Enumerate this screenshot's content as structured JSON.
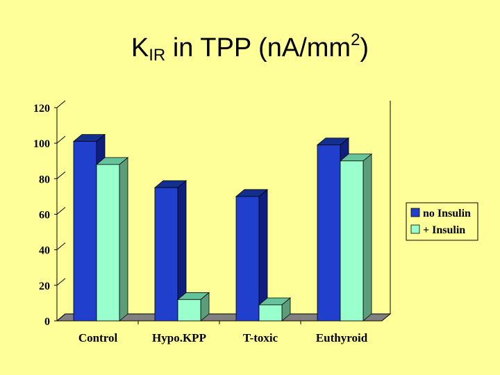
{
  "title": {
    "main": "K",
    "sub": "IR",
    "rest": " in TPP (n",
    "mid": "A/mm",
    "sup": "2",
    "close": ")"
  },
  "chart_data": {
    "type": "bar",
    "categories": [
      "Control",
      "Hypo.KPP",
      "T-toxic",
      "Euthyroid"
    ],
    "series": [
      {
        "name": "no Insulin",
        "values": [
          101,
          75,
          70,
          99
        ],
        "color": "#1F3FCC"
      },
      {
        "name": "+ Insulin",
        "values": [
          88,
          12,
          9,
          90
        ],
        "color": "#99FFCC"
      }
    ],
    "ylim": [
      0,
      120
    ],
    "yticks": [
      "0",
      "20",
      "40",
      "60",
      "80",
      "100",
      "120"
    ],
    "legend_position": "right",
    "grid": false
  }
}
